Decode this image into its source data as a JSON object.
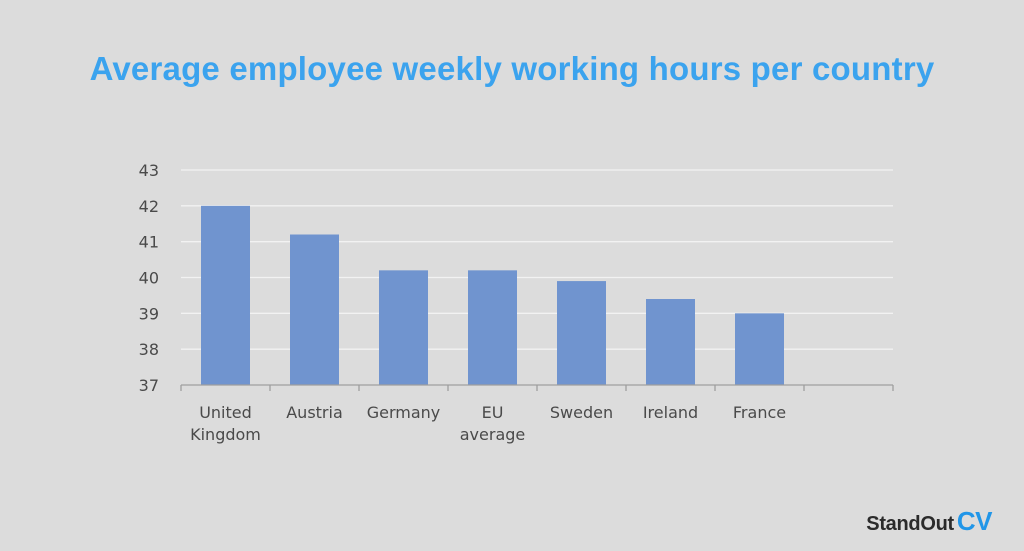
{
  "header": {
    "title": "Average employee weekly working hours per country"
  },
  "chart_data": {
    "type": "bar",
    "title": "Average employee weekly working hours per country",
    "categories": [
      "United Kingdom",
      "Austria",
      "Germany",
      "EU average",
      "Sweden",
      "Ireland",
      "France",
      ""
    ],
    "category_lines": [
      [
        "United",
        "Kingdom"
      ],
      [
        "Austria"
      ],
      [
        "Germany"
      ],
      [
        "EU",
        "average"
      ],
      [
        "Sweden"
      ],
      [
        "Ireland"
      ],
      [
        "France"
      ],
      []
    ],
    "values": [
      42.0,
      41.2,
      40.2,
      40.2,
      39.9,
      39.4,
      39.0,
      null
    ],
    "ylim": [
      37,
      43
    ],
    "yticks": [
      37,
      38,
      39,
      40,
      41,
      42,
      43
    ],
    "xlabel": "",
    "ylabel": "",
    "grid": true,
    "bar_color": "#7094cf",
    "grid_color": "#f2f2f2",
    "axis_color": "#9e9e9e"
  },
  "logo": {
    "text": "StandOut",
    "accent": "CV"
  }
}
